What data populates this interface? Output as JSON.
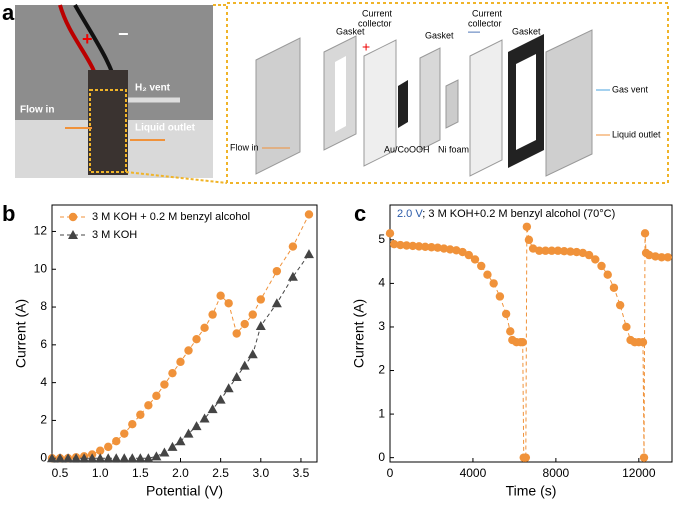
{
  "panel_labels": [
    "a",
    "b",
    "c"
  ],
  "photo": {
    "plus": "+",
    "minus": "−",
    "flow_in": "Flow in",
    "h2_vent": "H₂ vent",
    "liquid_outlet": "Liquid outlet"
  },
  "diagram": {
    "gasket_1": "Gasket",
    "collector_1": [
      "Current",
      "collector"
    ],
    "gasket_2": "Gasket",
    "collector_2": [
      "Current",
      "collector"
    ],
    "gasket_3": "Gasket",
    "plus": "+",
    "minus": "—",
    "flow_in": "Flow in",
    "au": "Au/CoOOH",
    "ni": "Ni foam",
    "gas_vent": "Gas vent",
    "liquid_outlet": "Liquid outlet"
  },
  "chart_data": [
    {
      "type": "line",
      "x_label": "Potential (V)",
      "y_label": "Current (A)",
      "x": [
        0.4,
        0.5,
        0.6,
        0.7,
        0.8,
        0.9,
        1.0,
        1.1,
        1.2,
        1.3,
        1.4,
        1.5,
        1.6,
        1.7,
        1.8,
        1.9,
        2.0,
        2.1,
        2.2,
        2.3,
        2.4,
        2.5,
        2.6,
        2.7,
        2.8,
        2.9,
        3.0,
        3.2,
        3.4,
        3.6
      ],
      "series": [
        {
          "name": "3 M KOH + 0.2 M benzyl alcohol",
          "color": "#f0923a",
          "marker": "circle",
          "values": [
            0,
            0,
            0,
            0.05,
            0.1,
            0.2,
            0.4,
            0.6,
            0.9,
            1.3,
            1.8,
            2.3,
            2.8,
            3.3,
            3.9,
            4.5,
            5.1,
            5.7,
            6.3,
            6.9,
            7.6,
            8.6,
            8.2,
            6.6,
            7.1,
            7.6,
            8.4,
            9.9,
            11.2,
            12.9
          ]
        },
        {
          "name": "3 M KOH",
          "color": "#444444",
          "marker": "triangle",
          "values": [
            0,
            0,
            0,
            0,
            0,
            0,
            0,
            0,
            0,
            0,
            0,
            0,
            0,
            0.1,
            0.3,
            0.6,
            0.9,
            1.3,
            1.7,
            2.1,
            2.6,
            3.1,
            3.7,
            4.3,
            4.9,
            5.5,
            7.0,
            8.2,
            9.6,
            10.8
          ]
        }
      ],
      "xlim": [
        0.4,
        3.7
      ],
      "xticks": [
        0.5,
        {
          "value": 1,
          "label": "1.0"
        },
        1.5,
        {
          "value": 2,
          "label": "2.0"
        },
        2.5,
        {
          "value": 3,
          "label": "3.0"
        },
        3.5
      ],
      "ylim": [
        -0.2,
        13.4
      ],
      "yticks": [
        0,
        2,
        4,
        6,
        8,
        10,
        12
      ],
      "legend": "top-left"
    },
    {
      "type": "line",
      "x_label": "Time (s)",
      "y_label": "Current (A)",
      "annotation_prefix": "2.0 V",
      "annotation": "; 3 M KOH+0.2 M benzyl alcohol (70°C)",
      "x": [
        0,
        200,
        500,
        800,
        1100,
        1400,
        1700,
        2000,
        2300,
        2600,
        2900,
        3200,
        3500,
        3800,
        4100,
        4400,
        4700,
        5000,
        5300,
        5600,
        5800,
        5900,
        6100,
        6300,
        6400,
        6450,
        6550,
        6600,
        6700,
        6900,
        7200,
        7500,
        7800,
        8100,
        8400,
        8700,
        9000,
        9300,
        9600,
        9900,
        10200,
        10500,
        10800,
        11100,
        11400,
        11600,
        11800,
        12000,
        12200,
        12250,
        12300,
        12350,
        12500,
        12800,
        13100,
        13400
      ],
      "series": [
        {
          "name": null,
          "color": "#f0923a",
          "marker": "circle",
          "values": [
            5.15,
            4.9,
            4.88,
            4.87,
            4.86,
            4.85,
            4.84,
            4.83,
            4.82,
            4.8,
            4.78,
            4.76,
            4.72,
            4.65,
            4.55,
            4.4,
            4.2,
            4.0,
            3.7,
            3.3,
            2.9,
            2.7,
            2.65,
            2.65,
            2.65,
            0,
            0,
            5.3,
            5.0,
            4.8,
            4.75,
            4.75,
            4.75,
            4.75,
            4.74,
            4.73,
            4.72,
            4.7,
            4.65,
            4.55,
            4.4,
            4.2,
            3.9,
            3.5,
            3.0,
            2.7,
            2.65,
            2.65,
            2.65,
            0,
            5.15,
            4.7,
            4.65,
            4.62,
            4.6,
            4.6
          ]
        }
      ],
      "xlim": [
        0,
        13600
      ],
      "xticks": [
        0,
        4000,
        8000,
        12000
      ],
      "ylim": [
        -0.1,
        5.8
      ],
      "yticks": [
        0,
        1,
        2,
        3,
        4,
        5
      ]
    }
  ]
}
